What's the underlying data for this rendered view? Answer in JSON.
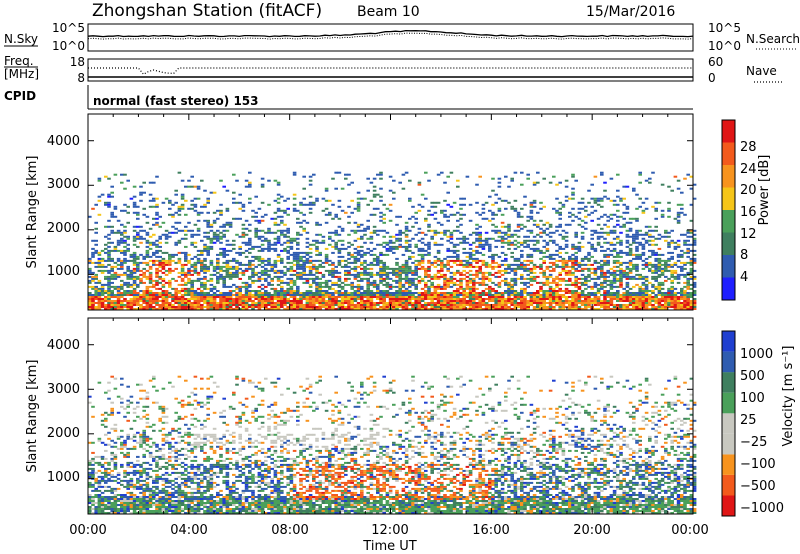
{
  "header": {
    "title": "Zhongshan Station (fitACF)",
    "beam": "Beam 10",
    "date": "15/Mar/2016"
  },
  "strip_nsky": {
    "left_label": "N.Sky",
    "left_ticks": [
      "10^5",
      "10^0"
    ],
    "right_ticks": [
      "10^5",
      "10^0"
    ],
    "right_label": "N.Search"
  },
  "strip_freq": {
    "left_label_1": "Freq.",
    "left_label_2": "[MHz]",
    "left_ticks": [
      "18",
      "8"
    ],
    "right_ticks": [
      "60",
      "0"
    ],
    "right_label": "Nave"
  },
  "cpid": {
    "label": "CPID",
    "text": "normal (fast stereo) 153"
  },
  "colors": {
    "power": [
      "#1f1fff",
      "#2f5cb0",
      "#3f7f5f",
      "#4aa05a",
      "#f5c518",
      "#f7931e",
      "#f35a1c",
      "#e01616"
    ],
    "velocity": [
      "#e01616",
      "#f35a1c",
      "#f7931e",
      "#c8c8c0",
      "#c8c8c0",
      "#4aa05a",
      "#3f7f5f",
      "#2f5cb0",
      "#1f3fd0"
    ]
  },
  "chart_data": [
    {
      "type": "heatmap",
      "name": "power",
      "ylabel": "Slant Range [km]",
      "xlabel": "",
      "y_ticks": [
        "1000",
        "2000",
        "3000",
        "4000"
      ],
      "ylim": [
        200,
        4600
      ],
      "colorbar": {
        "label": "Power [dB]",
        "ticks": [
          "4",
          "8",
          "12",
          "16",
          "20",
          "24",
          "28"
        ],
        "range": [
          0,
          32
        ]
      }
    },
    {
      "type": "heatmap",
      "name": "velocity",
      "ylabel": "Slant Range [km]",
      "xlabel": "Time UT",
      "x_ticks": [
        "00:00",
        "04:00",
        "08:00",
        "12:00",
        "16:00",
        "20:00",
        "00:00"
      ],
      "y_ticks": [
        "1000",
        "2000",
        "3000",
        "4000"
      ],
      "ylim": [
        200,
        4600
      ],
      "colorbar": {
        "label": "Velocity [m s⁻¹]",
        "ticks": [
          "1000",
          "500",
          "100",
          "25",
          "−25",
          "−100",
          "−500",
          "−1000"
        ]
      }
    }
  ]
}
